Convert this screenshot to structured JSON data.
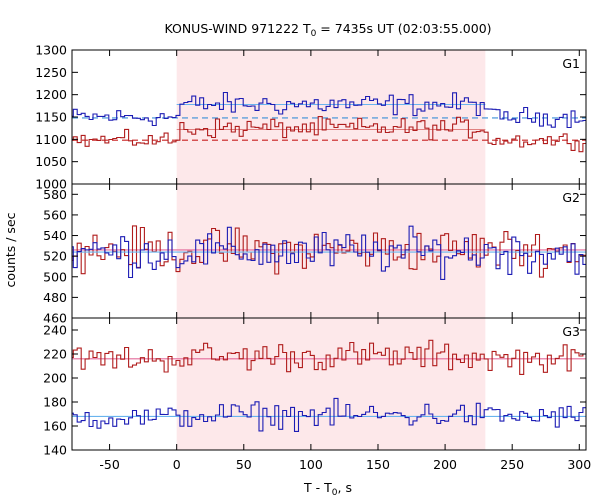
{
  "chart_data": {
    "type": "line",
    "title": {
      "prefix": "KONUS-WIND 971222 T",
      "sub": "0",
      "suffix": " = 7435s UT (02:03:55.000)"
    },
    "xlabel": {
      "prefix": "T - T",
      "sub": "0",
      "suffix": ", s"
    },
    "ylabel": "counts / sec",
    "xlim": [
      -78,
      305
    ],
    "x_ticks": [
      -50,
      0,
      50,
      100,
      150,
      200,
      250,
      300
    ],
    "x_tick_labels": [
      "-50",
      "0",
      "50",
      "100",
      "150",
      "200",
      "250",
      "300"
    ],
    "highlight_interval": [
      0,
      230
    ],
    "highlight_color": "#fde8ea",
    "bin_width": 2.944,
    "grid": false,
    "panels": [
      {
        "name": "G1",
        "ylim": [
          1000,
          1300
        ],
        "y_ticks": [
          1000,
          1050,
          1100,
          1150,
          1200,
          1250,
          1300
        ],
        "y_tick_labels": [
          "1000",
          "1050",
          "1100",
          "1150",
          "1200",
          "1250",
          "1300"
        ],
        "series": [
          {
            "color": "#1c1cb4",
            "background_level": 1148,
            "background_color": "#3a8fd8",
            "background_dashed": true,
            "fit_level": 1178,
            "fit_color": "#6ab4ee",
            "pre": {
              "level": 1150,
              "amp": 17
            },
            "burst": {
              "level": 1178,
              "amp": 20
            },
            "post": {
              "level": 1150,
              "amp": 17
            }
          },
          {
            "color": "#b01c1c",
            "background_level": 1098,
            "background_color": "#c82020",
            "background_dashed": true,
            "fit_level": 1122,
            "fit_color": "#e08080",
            "pre": {
              "level": 1098,
              "amp": 15
            },
            "burst": {
              "level": 1125,
              "amp": 18
            },
            "post": {
              "level": 1098,
              "amp": 15
            }
          }
        ]
      },
      {
        "name": "G2",
        "ylim": [
          460,
          590
        ],
        "y_ticks": [
          460,
          480,
          500,
          520,
          540,
          560,
          580
        ],
        "y_tick_labels": [
          "460",
          "480",
          "500",
          "520",
          "540",
          "560",
          "580"
        ],
        "series": [
          {
            "color": "#b01c1c",
            "background_level": 526,
            "background_color": "#e46a9a",
            "background_dashed": false,
            "pre": {
              "level": 526,
              "amp": 17
            },
            "burst": {
              "level": 526,
              "amp": 17
            },
            "post": {
              "level": 526,
              "amp": 17
            }
          },
          {
            "color": "#1c1cb4",
            "background_level": 524,
            "background_color": "#6ab4ee",
            "background_dashed": false,
            "pre": {
              "level": 524,
              "amp": 17
            },
            "burst": {
              "level": 524,
              "amp": 17
            },
            "post": {
              "level": 524,
              "amp": 17
            }
          }
        ]
      },
      {
        "name": "G3",
        "ylim": [
          140,
          250
        ],
        "y_ticks": [
          140,
          160,
          180,
          200,
          220,
          240
        ],
        "y_tick_labels": [
          "140",
          "160",
          "180",
          "200",
          "220",
          "240"
        ],
        "series": [
          {
            "color": "#b01c1c",
            "background_level": 216,
            "background_color": "#e46a9a",
            "background_dashed": false,
            "pre": {
              "level": 216,
              "amp": 9
            },
            "burst": {
              "level": 218,
              "amp": 10
            },
            "post": {
              "level": 216,
              "amp": 9
            }
          },
          {
            "color": "#1c1cb4",
            "background_level": 168,
            "background_color": "#6ab4ee",
            "background_dashed": false,
            "pre": {
              "level": 167,
              "amp": 8
            },
            "burst": {
              "level": 169,
              "amp": 9
            },
            "post": {
              "level": 168,
              "amp": 8
            }
          }
        ]
      }
    ]
  }
}
